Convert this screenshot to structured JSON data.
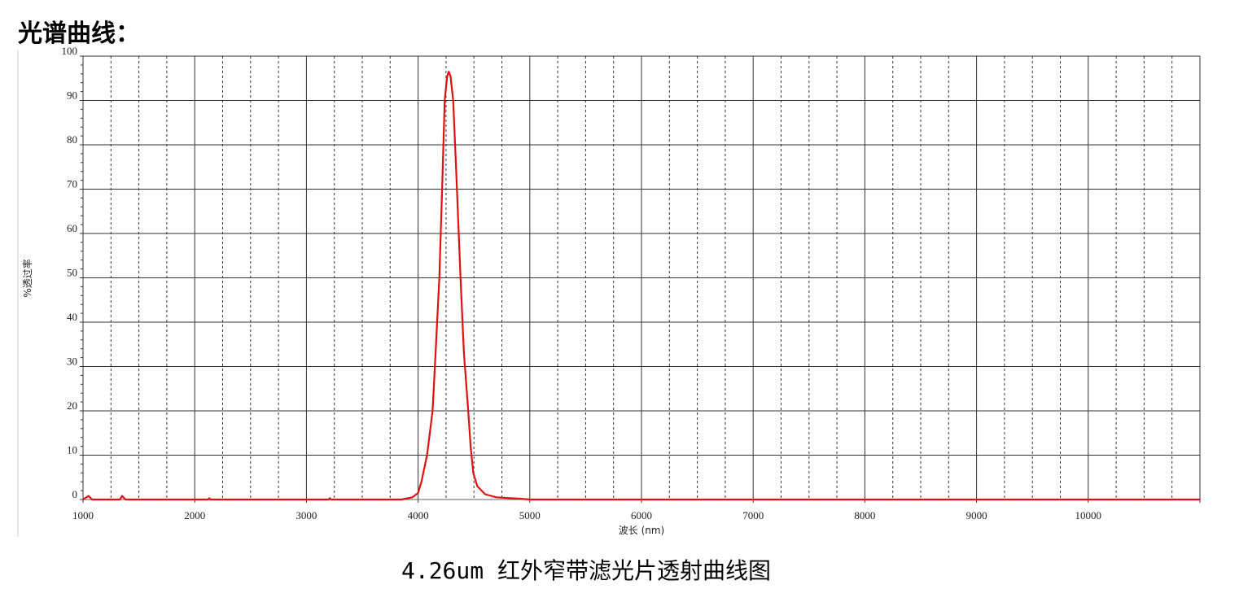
{
  "heading": "光谱曲线：",
  "caption": "4.26um 红外窄带滤光片透射曲线图",
  "chart_data": {
    "type": "line",
    "title": "",
    "xlabel": "波长 (nm)",
    "ylabel": "%透过率",
    "xlim": [
      1000,
      11000
    ],
    "ylim": [
      0,
      100
    ],
    "xticks": [
      1000,
      2000,
      3000,
      4000,
      5000,
      6000,
      7000,
      8000,
      9000,
      10000
    ],
    "yticks": [
      0,
      10,
      20,
      30,
      40,
      50,
      60,
      70,
      80,
      90,
      100
    ],
    "x_minor_step": 250,
    "grid": true,
    "grid_major_style": "solid",
    "grid_minor_style": "dashed",
    "series": [
      {
        "color": "#e01010",
        "points": [
          [
            1000,
            0
          ],
          [
            1050,
            0.8
          ],
          [
            1080,
            0
          ],
          [
            1330,
            0
          ],
          [
            1350,
            0.8
          ],
          [
            1380,
            0
          ],
          [
            2120,
            0
          ],
          [
            2130,
            0.3
          ],
          [
            2140,
            0
          ],
          [
            3200,
            0
          ],
          [
            3210,
            0.3
          ],
          [
            3220,
            0
          ],
          [
            3850,
            0
          ],
          [
            3950,
            0.5
          ],
          [
            4000,
            1.5
          ],
          [
            4030,
            4
          ],
          [
            4080,
            10
          ],
          [
            4130,
            20
          ],
          [
            4160,
            35
          ],
          [
            4190,
            50
          ],
          [
            4215,
            70
          ],
          [
            4238,
            90
          ],
          [
            4260,
            95.5
          ],
          [
            4275,
            96.5
          ],
          [
            4290,
            95.5
          ],
          [
            4314,
            90
          ],
          [
            4340,
            75
          ],
          [
            4380,
            50
          ],
          [
            4410,
            33
          ],
          [
            4449,
            20
          ],
          [
            4470,
            12
          ],
          [
            4494,
            6
          ],
          [
            4530,
            3
          ],
          [
            4600,
            1.2
          ],
          [
            4700,
            0.5
          ],
          [
            4900,
            0.2
          ],
          [
            5000,
            0
          ],
          [
            11000,
            0
          ]
        ]
      }
    ]
  }
}
